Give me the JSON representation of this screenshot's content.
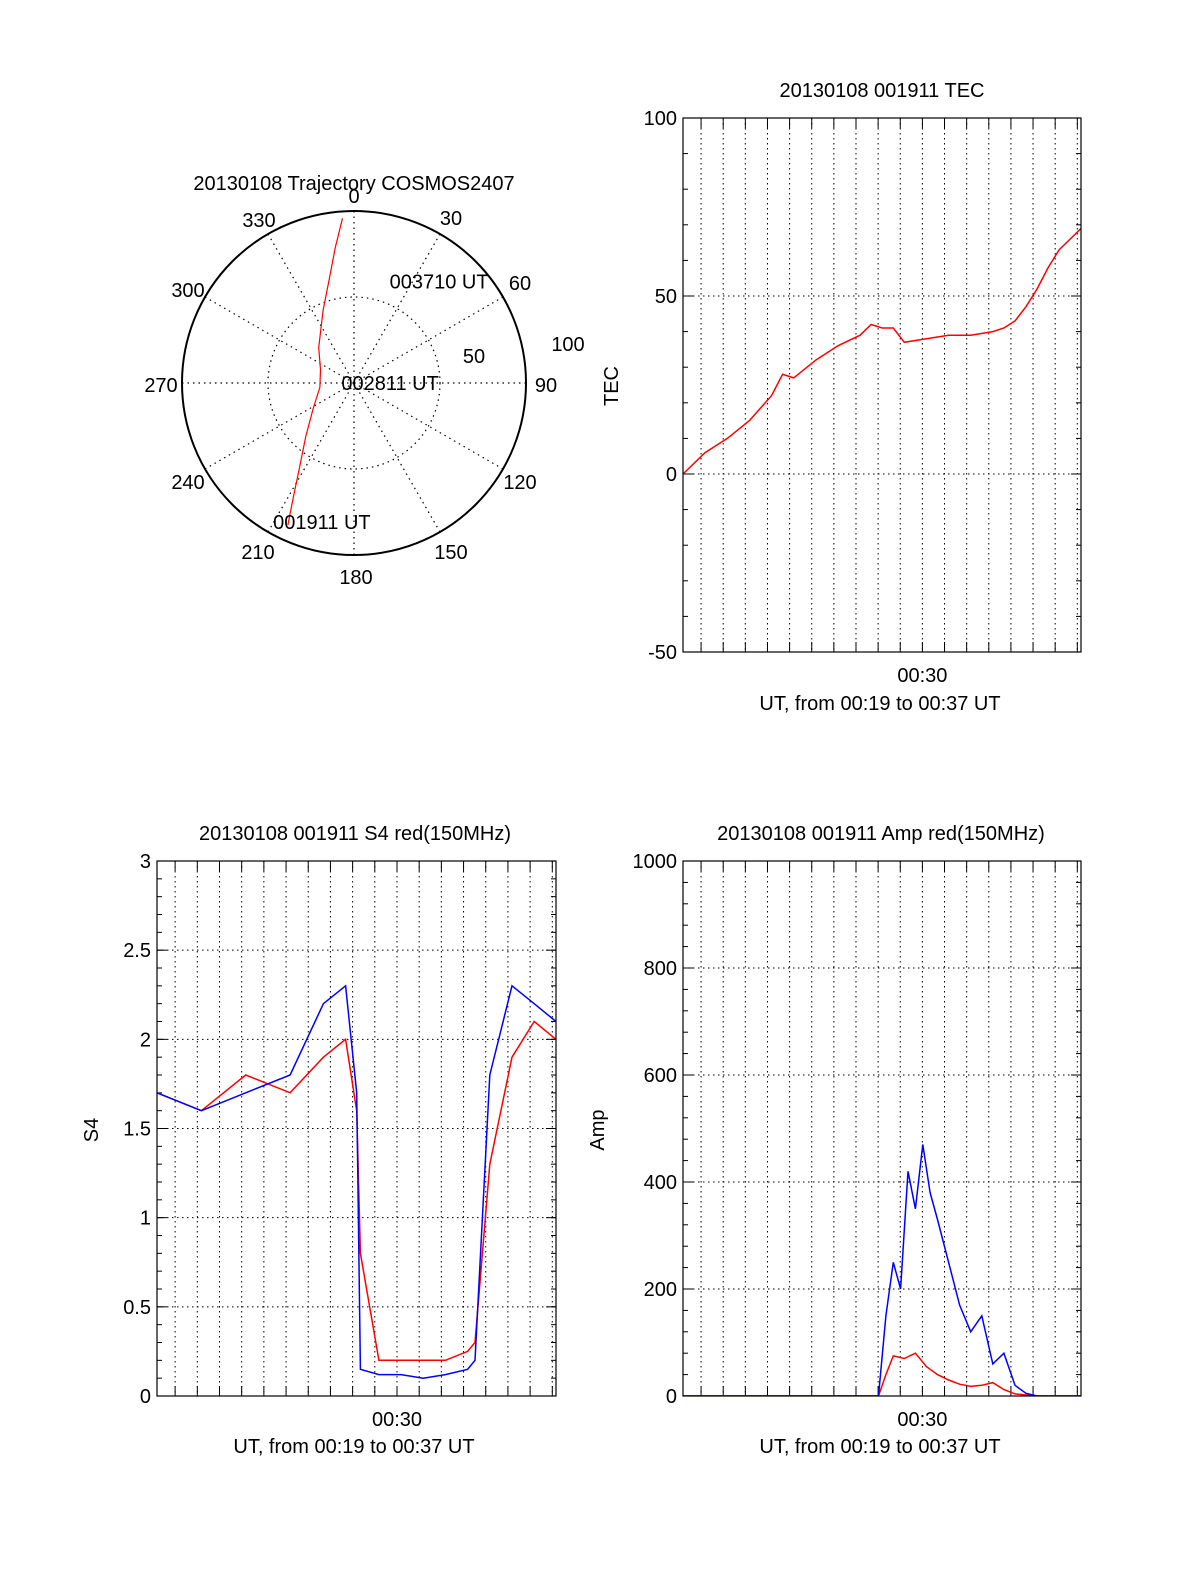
{
  "chart_data": [
    {
      "type": "polar",
      "title": "20130108 Trajectory COSMOS2407",
      "azimuth_ticks": [
        "0",
        "30",
        "60",
        "90",
        "120",
        "150",
        "180",
        "210",
        "240",
        "270",
        "300",
        "330"
      ],
      "radial_ticks": [
        "50",
        "100"
      ],
      "rlim": [
        0,
        100
      ],
      "grid": true,
      "series": [
        {
          "color": "#ff0000",
          "points": [
            {
              "az": 205,
              "r": 91
            },
            {
              "az": 208,
              "r": 75
            },
            {
              "az": 213,
              "r": 58
            },
            {
              "az": 222,
              "r": 42
            },
            {
              "az": 238,
              "r": 28
            },
            {
              "az": 263,
              "r": 20
            },
            {
              "az": 292,
              "r": 21
            },
            {
              "az": 315,
              "r": 29
            },
            {
              "az": 337,
              "r": 46
            },
            {
              "az": 347,
              "r": 63
            },
            {
              "az": 352,
              "r": 79
            },
            {
              "az": 356,
              "r": 96
            }
          ]
        }
      ],
      "annotations": [
        {
          "text": "003710 UT",
          "az": 40,
          "r": 77
        },
        {
          "text": "002811 UT",
          "az": 90,
          "r": 21
        },
        {
          "text": "001911 UT",
          "az": 193,
          "r": 83
        }
      ]
    },
    {
      "type": "line",
      "title": "20130108 001911 TEC",
      "xlabel": "UT, from 00:19 to 00:37 UT",
      "ylabel": "TEC",
      "xlim": [
        "00:19:11",
        "00:37:10"
      ],
      "ylim": [
        -50,
        100
      ],
      "x_tick_labels": [
        "00:30"
      ],
      "y_ticks": [
        -50,
        0,
        50,
        100
      ],
      "grid": true,
      "series": [
        {
          "color": "#ff0000",
          "x": [
            "00:19:11",
            "00:20:11",
            "00:21:11",
            "00:22:11",
            "00:23:11",
            "00:23:41",
            "00:24:11",
            "00:25:11",
            "00:26:11",
            "00:27:11",
            "00:27:41",
            "00:28:11",
            "00:28:41",
            "00:29:11",
            "00:30:11",
            "00:31:11",
            "00:32:11",
            "00:33:11",
            "00:33:41",
            "00:34:11",
            "00:34:41",
            "00:35:11",
            "00:35:41",
            "00:36:11",
            "00:36:41",
            "00:37:10"
          ],
          "values": [
            0,
            6,
            10,
            15,
            22,
            28,
            27,
            32,
            36,
            39,
            42,
            41,
            41,
            37,
            38,
            39,
            39,
            40,
            41,
            43,
            47,
            52,
            58,
            63,
            66,
            69
          ]
        }
      ]
    },
    {
      "type": "line",
      "title": "20130108 001911 S4 red(150MHz)",
      "xlabel": "UT, from 00:19 to 00:37 UT",
      "ylabel": "S4",
      "xlim": [
        "00:19:11",
        "00:37:10"
      ],
      "ylim": [
        0,
        3
      ],
      "x_tick_labels": [
        "00:30"
      ],
      "y_ticks": [
        0,
        0.5,
        1,
        1.5,
        2,
        2.5,
        3
      ],
      "grid": true,
      "series": [
        {
          "color": "#ff0000",
          "x": [
            "00:19:11",
            "00:21:11",
            "00:23:11",
            "00:25:11",
            "00:26:41",
            "00:27:41",
            "00:28:11",
            "00:28:21",
            "00:29:11",
            "00:30:11",
            "00:31:11",
            "00:32:11",
            "00:33:11",
            "00:33:31",
            "00:34:11",
            "00:35:11",
            "00:36:11",
            "00:37:10"
          ],
          "values": [
            1.7,
            1.6,
            1.8,
            1.7,
            1.9,
            2.0,
            1.6,
            0.8,
            0.2,
            0.2,
            0.2,
            0.2,
            0.25,
            0.3,
            1.3,
            1.9,
            2.1,
            2.0
          ]
        },
        {
          "color": "#0000ff",
          "x": [
            "00:19:11",
            "00:21:11",
            "00:23:11",
            "00:25:11",
            "00:26:41",
            "00:27:41",
            "00:28:11",
            "00:28:21",
            "00:29:11",
            "00:30:11",
            "00:31:11",
            "00:32:11",
            "00:33:11",
            "00:33:31",
            "00:34:11",
            "00:35:11",
            "00:36:11",
            "00:37:10"
          ],
          "values": [
            1.7,
            1.6,
            1.7,
            1.8,
            2.2,
            2.3,
            1.7,
            0.15,
            0.12,
            0.12,
            0.1,
            0.12,
            0.15,
            0.2,
            1.8,
            2.3,
            2.2,
            2.1
          ]
        }
      ]
    },
    {
      "type": "line",
      "title": "20130108 001911 Amp red(150MHz)",
      "xlabel": "UT, from 00:19 to 00:37 UT",
      "ylabel": "Amp",
      "xlim": [
        "00:19:11",
        "00:37:10"
      ],
      "ylim": [
        0,
        1000
      ],
      "x_tick_labels": [
        "00:30"
      ],
      "y_ticks": [
        0,
        200,
        400,
        600,
        800,
        1000
      ],
      "grid": true,
      "series": [
        {
          "color": "#ff0000",
          "x": [
            "00:19:11",
            "00:24:11",
            "00:28:01",
            "00:28:21",
            "00:28:41",
            "00:29:11",
            "00:29:41",
            "00:30:11",
            "00:30:41",
            "00:31:11",
            "00:31:41",
            "00:32:11",
            "00:32:41",
            "00:33:11",
            "00:33:41",
            "00:34:11",
            "00:35:11",
            "00:37:10"
          ],
          "values": [
            0,
            0,
            0,
            40,
            75,
            70,
            80,
            55,
            40,
            30,
            22,
            18,
            20,
            25,
            12,
            4,
            0,
            0
          ]
        },
        {
          "color": "#0000ff",
          "x": [
            "00:19:11",
            "00:24:11",
            "00:28:01",
            "00:28:21",
            "00:28:41",
            "00:29:01",
            "00:29:21",
            "00:29:41",
            "00:30:01",
            "00:30:21",
            "00:30:41",
            "00:31:11",
            "00:31:41",
            "00:32:11",
            "00:32:41",
            "00:33:11",
            "00:33:41",
            "00:34:11",
            "00:34:41",
            "00:35:11",
            "00:37:10"
          ],
          "values": [
            0,
            0,
            0,
            150,
            250,
            200,
            420,
            350,
            470,
            380,
            330,
            250,
            170,
            120,
            150,
            60,
            80,
            20,
            5,
            0,
            0
          ]
        }
      ]
    }
  ]
}
